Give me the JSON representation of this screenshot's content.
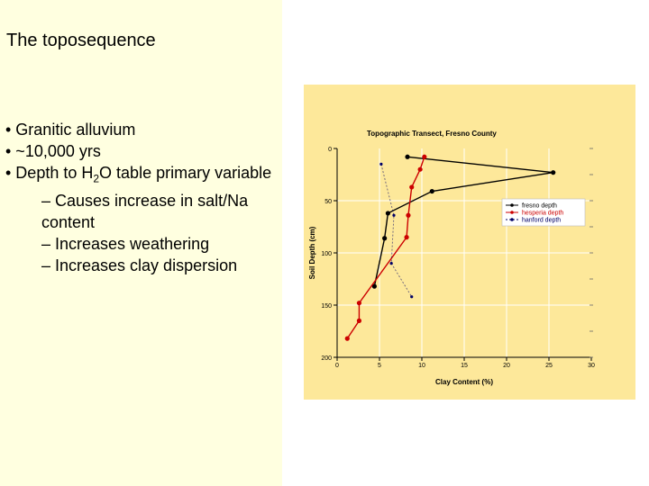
{
  "slide": {
    "title": "The toposequence",
    "bullets": [
      "• Granitic alluvium",
      "• ~10,000 yrs",
      "• Depth to H",
      "O table primary variable"
    ],
    "sub_bullets": [
      "– Causes increase in salt/Na content",
      "– Increases weathering",
      "– Increases clay dispersion"
    ],
    "subscript": "2"
  },
  "chart_data": {
    "type": "line",
    "title": "Topographic Transect, Fresno County",
    "xlabel": "Clay Content (%)",
    "ylabel": "Soil Depth (cm)",
    "xlim": [
      0,
      30
    ],
    "ylim": [
      0,
      200
    ],
    "y_inverted": true,
    "x_ticks": [
      0,
      5,
      10,
      15,
      20,
      25,
      30
    ],
    "y_ticks": [
      0,
      50,
      100,
      150,
      200
    ],
    "legend_position": "right",
    "series": [
      {
        "name": "fresno depth",
        "color": "#000000",
        "line_style": "solid",
        "points": [
          [
            8.3,
            8
          ],
          [
            25.5,
            23
          ],
          [
            11.2,
            41
          ],
          [
            6.0,
            62
          ],
          [
            5.6,
            86
          ],
          [
            4.4,
            132
          ]
        ]
      },
      {
        "name": "hesperia depth",
        "color": "#cc0000",
        "line_style": "solid",
        "points": [
          [
            10.3,
            8
          ],
          [
            9.8,
            20
          ],
          [
            8.8,
            37
          ],
          [
            8.4,
            64
          ],
          [
            8.2,
            85
          ],
          [
            2.6,
            148
          ],
          [
            2.6,
            165
          ],
          [
            1.2,
            182
          ]
        ]
      },
      {
        "name": "hanford depth",
        "color": "#000066",
        "line_style": "dashed",
        "points": [
          [
            5.2,
            15
          ],
          [
            6.7,
            64
          ],
          [
            6.4,
            110
          ],
          [
            8.8,
            142
          ]
        ]
      }
    ]
  }
}
